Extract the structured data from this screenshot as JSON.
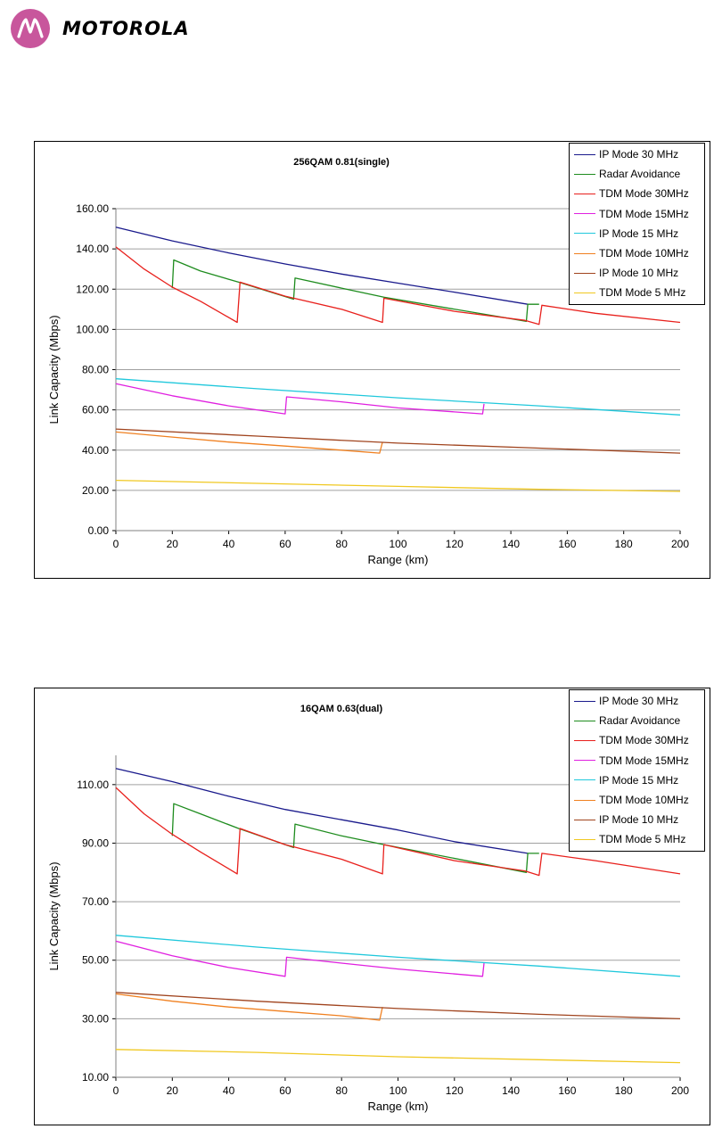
{
  "header": {
    "brand": "MOTOROLA",
    "logo_icon": "motorola-batwing-icon",
    "logo_color": "#c8569c"
  },
  "chart_data": [
    {
      "type": "line",
      "title": "256QAM 0.81(single)",
      "xlabel": "Range (km)",
      "ylabel": "Link Capacity (Mbps)",
      "xlim": [
        0,
        200
      ],
      "ylim": [
        0,
        160
      ],
      "x_ticks": [
        "0",
        "20",
        "40",
        "60",
        "80",
        "100",
        "120",
        "140",
        "160",
        "180",
        "200"
      ],
      "y_ticks": [
        "0.00",
        "20.00",
        "40.00",
        "60.00",
        "80.00",
        "100.00",
        "120.00",
        "140.00",
        "160.00"
      ],
      "grid": "horizontal",
      "legend_position": "top-right",
      "series": [
        {
          "name": "IP Mode 30 MHz",
          "color": "#1a1a8c",
          "points": [
            [
              0,
              150.8
            ],
            [
              20,
              144
            ],
            [
              40,
              138
            ],
            [
              60,
              132.5
            ],
            [
              80,
              127.5
            ],
            [
              100,
              123
            ],
            [
              120,
              118.5
            ],
            [
              146,
              112.5
            ]
          ]
        },
        {
          "name": "Radar Avoidance",
          "color": "#1e8c1e",
          "points": [
            [
              20,
              120.5
            ],
            [
              20.5,
              134.5
            ],
            [
              30,
              129
            ],
            [
              43.5,
              123.5
            ],
            [
              63,
              115
            ],
            [
              63.5,
              125.5
            ],
            [
              80,
              120.5
            ],
            [
              95,
              116
            ],
            [
              145.5,
              104
            ],
            [
              146,
              112.5
            ],
            [
              150,
              112.5
            ]
          ]
        },
        {
          "name": "TDM Mode 30MHz",
          "color": "#e8201c",
          "points": [
            [
              0,
              141
            ],
            [
              10,
              130
            ],
            [
              20,
              121
            ],
            [
              30,
              114
            ],
            [
              43,
              103.5
            ],
            [
              44,
              123.5
            ],
            [
              60,
              116.5
            ],
            [
              80,
              110
            ],
            [
              94.5,
              103.5
            ],
            [
              95,
              115.5
            ],
            [
              120,
              109
            ],
            [
              145,
              104.5
            ],
            [
              150,
              102.5
            ],
            [
              151,
              112
            ],
            [
              170,
              108
            ],
            [
              200,
              103.5
            ]
          ]
        },
        {
          "name": "TDM Mode 15MHz",
          "color": "#e020e0",
          "points": [
            [
              0,
              73
            ],
            [
              20,
              67
            ],
            [
              40,
              62
            ],
            [
              60,
              58
            ],
            [
              60.5,
              66.5
            ],
            [
              80,
              64
            ],
            [
              100,
              61
            ],
            [
              130,
              58
            ],
            [
              130.5,
              63
            ]
          ]
        },
        {
          "name": "IP Mode 15 MHz",
          "color": "#20c8dc",
          "points": [
            [
              0,
              75.5
            ],
            [
              50,
              70.5
            ],
            [
              100,
              66
            ],
            [
              150,
              62
            ],
            [
              200,
              57.5
            ]
          ]
        },
        {
          "name": "TDM Mode 10MHz",
          "color": "#f08020",
          "points": [
            [
              0,
              49
            ],
            [
              20,
              46.5
            ],
            [
              40,
              44
            ],
            [
              60,
              42
            ],
            [
              80,
              40
            ],
            [
              93.5,
              38.5
            ],
            [
              94.5,
              44
            ]
          ]
        },
        {
          "name": "IP Mode 10 MHz",
          "color": "#a0441e",
          "points": [
            [
              0,
              50.5
            ],
            [
              50,
              47
            ],
            [
              100,
              43.5
            ],
            [
              150,
              41
            ],
            [
              200,
              38.5
            ]
          ]
        },
        {
          "name": "TDM Mode 5 MHz",
          "color": "#f0c820",
          "points": [
            [
              0,
              25
            ],
            [
              50,
              23.5
            ],
            [
              100,
              22
            ],
            [
              150,
              20.5
            ],
            [
              200,
              19.5
            ]
          ]
        }
      ]
    },
    {
      "type": "line",
      "title": "16QAM 0.63(dual)",
      "xlabel": "Range (km)",
      "ylabel": "Link Capacity (Mbps)",
      "xlim": [
        0,
        200
      ],
      "ylim": [
        10,
        120
      ],
      "x_ticks": [
        "0",
        "20",
        "40",
        "60",
        "80",
        "100",
        "120",
        "140",
        "160",
        "180",
        "200"
      ],
      "y_ticks": [
        "10.00",
        "30.00",
        "50.00",
        "70.00",
        "90.00",
        "110.00"
      ],
      "grid": "horizontal",
      "legend_position": "top-right",
      "series": [
        {
          "name": "IP Mode 30 MHz",
          "color": "#1a1a8c",
          "points": [
            [
              0,
              115.5
            ],
            [
              20,
              111
            ],
            [
              40,
              106
            ],
            [
              60,
              101.5
            ],
            [
              80,
              98
            ],
            [
              100,
              94.5
            ],
            [
              120,
              90.5
            ],
            [
              146,
              86.5
            ]
          ]
        },
        {
          "name": "Radar Avoidance",
          "color": "#1e8c1e",
          "points": [
            [
              20,
              92.5
            ],
            [
              20.5,
              103.5
            ],
            [
              30,
              100
            ],
            [
              43.5,
              95
            ],
            [
              63,
              88.5
            ],
            [
              63.5,
              96.5
            ],
            [
              80,
              92.5
            ],
            [
              95,
              89.5
            ],
            [
              145.5,
              80
            ],
            [
              146,
              86.5
            ],
            [
              150,
              86.5
            ]
          ]
        },
        {
          "name": "TDM Mode 30MHz",
          "color": "#e8201c",
          "points": [
            [
              0,
              109
            ],
            [
              10,
              100
            ],
            [
              20,
              93
            ],
            [
              30,
              87
            ],
            [
              43,
              79.5
            ],
            [
              44,
              95
            ],
            [
              60,
              89.5
            ],
            [
              80,
              84.5
            ],
            [
              94.5,
              79.5
            ],
            [
              95,
              89.5
            ],
            [
              120,
              84
            ],
            [
              145,
              80.5
            ],
            [
              150,
              79
            ],
            [
              151,
              86.5
            ],
            [
              170,
              84
            ],
            [
              200,
              79.5
            ]
          ]
        },
        {
          "name": "TDM Mode 15MHz",
          "color": "#e020e0",
          "points": [
            [
              0,
              56.5
            ],
            [
              20,
              51.5
            ],
            [
              40,
              47.5
            ],
            [
              60,
              44.5
            ],
            [
              60.5,
              51
            ],
            [
              80,
              49
            ],
            [
              100,
              47
            ],
            [
              130,
              44.5
            ],
            [
              130.5,
              49
            ]
          ]
        },
        {
          "name": "IP Mode 15 MHz",
          "color": "#20c8dc",
          "points": [
            [
              0,
              58.5
            ],
            [
              50,
              54.5
            ],
            [
              100,
              51
            ],
            [
              150,
              48
            ],
            [
              200,
              44.5
            ]
          ]
        },
        {
          "name": "TDM Mode 10MHz",
          "color": "#f08020",
          "points": [
            [
              0,
              38.5
            ],
            [
              20,
              36
            ],
            [
              40,
              34
            ],
            [
              60,
              32.5
            ],
            [
              80,
              31
            ],
            [
              93.5,
              29.5
            ],
            [
              94.5,
              34
            ]
          ]
        },
        {
          "name": "IP Mode 10 MHz",
          "color": "#a0441e",
          "points": [
            [
              0,
              39
            ],
            [
              50,
              36
            ],
            [
              100,
              33.5
            ],
            [
              150,
              31.5
            ],
            [
              200,
              30
            ]
          ]
        },
        {
          "name": "TDM Mode 5 MHz",
          "color": "#f0c820",
          "points": [
            [
              0,
              19.5
            ],
            [
              50,
              18.5
            ],
            [
              100,
              17
            ],
            [
              150,
              16
            ],
            [
              200,
              15
            ]
          ]
        }
      ]
    }
  ]
}
